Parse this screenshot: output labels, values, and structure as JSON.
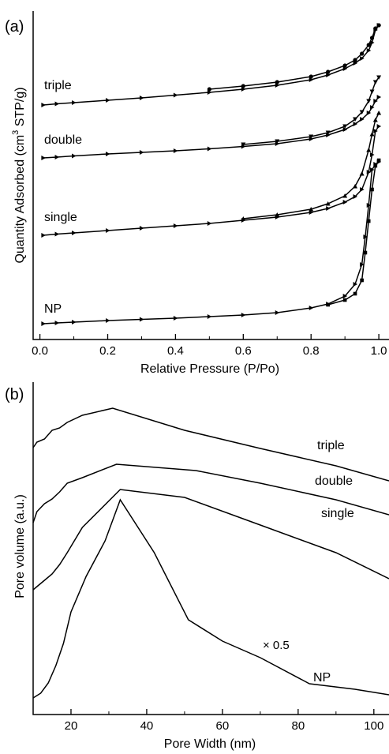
{
  "chart_data": [
    {
      "panel": "(a)",
      "type": "line",
      "xlabel": "Relative Pressure (P/Po)",
      "ylabel_main": "Quantity Adsorbed (cm",
      "ylabel_sup": "3",
      "ylabel_tail": " STP/g)",
      "xlim": [
        -0.02,
        1.03
      ],
      "x_ticks": [
        0.0,
        0.2,
        0.4,
        0.6,
        0.8,
        1.0
      ],
      "x_tick_labels": [
        "0.0",
        "0.2",
        "0.4",
        "0.6",
        "0.8",
        "1.0"
      ],
      "y_ticks_visible": false,
      "series": [
        {
          "name": "triple",
          "adsorption": [
            [
              0.01,
              133
            ],
            [
              0.05,
              131.5
            ],
            [
              0.1,
              130
            ],
            [
              0.2,
              127
            ],
            [
              0.3,
              124
            ],
            [
              0.4,
              120.5
            ],
            [
              0.5,
              117
            ],
            [
              0.6,
              113
            ],
            [
              0.7,
              108
            ],
            [
              0.8,
              101
            ],
            [
              0.85,
              95
            ],
            [
              0.9,
              87
            ],
            [
              0.93,
              80
            ],
            [
              0.95,
              74
            ],
            [
              0.97,
              64
            ],
            [
              0.98,
              54
            ],
            [
              0.99,
              38
            ],
            [
              1.0,
              32
            ]
          ],
          "desorption": [
            [
              1.0,
              32
            ],
            [
              0.99,
              36
            ],
            [
              0.98,
              48
            ],
            [
              0.97,
              57
            ],
            [
              0.95,
              68
            ],
            [
              0.93,
              76
            ],
            [
              0.9,
              83
            ],
            [
              0.85,
              91
            ],
            [
              0.8,
              97
            ],
            [
              0.7,
              104
            ],
            [
              0.6,
              109
            ],
            [
              0.5,
              113
            ]
          ]
        },
        {
          "name": "double",
          "adsorption": [
            [
              0.01,
              200
            ],
            [
              0.05,
              199
            ],
            [
              0.1,
              197.5
            ],
            [
              0.2,
              195
            ],
            [
              0.3,
              193
            ],
            [
              0.4,
              191
            ],
            [
              0.5,
              188.5
            ],
            [
              0.6,
              185.5
            ],
            [
              0.7,
              182
            ],
            [
              0.8,
              176
            ],
            [
              0.85,
              171
            ],
            [
              0.9,
              164
            ],
            [
              0.93,
              157
            ],
            [
              0.95,
              151
            ],
            [
              0.97,
              143
            ],
            [
              0.98,
              136
            ],
            [
              0.99,
              128
            ],
            [
              1.0,
              123
            ]
          ],
          "desorption": [
            [
              1.0,
              98
            ],
            [
              0.99,
              104
            ],
            [
              0.98,
              116
            ],
            [
              0.97,
              128
            ],
            [
              0.95,
              142
            ],
            [
              0.93,
              151
            ],
            [
              0.9,
              160
            ],
            [
              0.85,
              168
            ],
            [
              0.8,
              173
            ],
            [
              0.7,
              179
            ],
            [
              0.6,
              183
            ]
          ]
        },
        {
          "name": "single",
          "adsorption": [
            [
              0.01,
              298
            ],
            [
              0.05,
              296.5
            ],
            [
              0.1,
              295
            ],
            [
              0.2,
              292
            ],
            [
              0.3,
              289
            ],
            [
              0.4,
              286
            ],
            [
              0.5,
              283
            ],
            [
              0.6,
              279
            ],
            [
              0.7,
              275
            ],
            [
              0.8,
              269
            ],
            [
              0.85,
              264
            ],
            [
              0.9,
              256
            ],
            [
              0.93,
              249
            ],
            [
              0.95,
              240
            ],
            [
              0.97,
              218
            ],
            [
              0.98,
              196
            ],
            [
              0.99,
              166
            ],
            [
              1.0,
              160
            ]
          ],
          "desorption": [
            [
              1.0,
              143
            ],
            [
              0.99,
              152
            ],
            [
              0.98,
              170
            ],
            [
              0.97,
              190
            ],
            [
              0.95,
              220
            ],
            [
              0.93,
              236
            ],
            [
              0.9,
              248
            ],
            [
              0.85,
              258
            ],
            [
              0.8,
              265
            ],
            [
              0.7,
              272
            ],
            [
              0.6,
              277
            ]
          ]
        },
        {
          "name": "NP",
          "adsorption": [
            [
              0.01,
              410
            ],
            [
              0.05,
              409
            ],
            [
              0.1,
              408
            ],
            [
              0.2,
              406
            ],
            [
              0.3,
              404.5
            ],
            [
              0.4,
              403
            ],
            [
              0.5,
              401
            ],
            [
              0.6,
              399
            ],
            [
              0.7,
              396
            ],
            [
              0.8,
              390
            ],
            [
              0.85,
              385
            ],
            [
              0.9,
              375
            ],
            [
              0.93,
              360
            ],
            [
              0.95,
              335
            ],
            [
              0.96,
              300
            ],
            [
              0.97,
              260
            ],
            [
              0.98,
              215
            ],
            [
              0.99,
              208
            ],
            [
              1.0,
              205
            ]
          ],
          "desorption": [
            [
              1.0,
              203
            ],
            [
              0.99,
              210
            ],
            [
              0.98,
              240
            ],
            [
              0.97,
              280
            ],
            [
              0.96,
              320
            ],
            [
              0.95,
              355
            ],
            [
              0.93,
              372
            ],
            [
              0.9,
              380
            ],
            [
              0.85,
              386
            ]
          ]
        }
      ]
    },
    {
      "panel": "(b)",
      "type": "line",
      "xlabel": "Pore Width (nm)",
      "ylabel": "Pore volume (a.u.)",
      "xlim": [
        10,
        104
      ],
      "x_ticks": [
        20,
        40,
        60,
        80,
        100
      ],
      "x_tick_labels": [
        "20",
        "40",
        "60",
        "80",
        "100"
      ],
      "y_ticks_visible": false,
      "annotation": "× 0.5",
      "series": [
        {
          "name": "triple",
          "points": [
            [
              10,
              567
            ],
            [
              11,
              560
            ],
            [
              13,
              556
            ],
            [
              15,
              545
            ],
            [
              17,
              542
            ],
            [
              19,
              535
            ],
            [
              23,
              526
            ],
            [
              31,
              517
            ],
            [
              50,
              545
            ],
            [
              70,
              568
            ],
            [
              90,
              590
            ],
            [
              104,
              609
            ]
          ]
        },
        {
          "name": "double",
          "points": [
            [
              10,
              662
            ],
            [
              11,
              648
            ],
            [
              13,
              638
            ],
            [
              15,
              632
            ],
            [
              17,
              623
            ],
            [
              19,
              612
            ],
            [
              23,
              605
            ],
            [
              32,
              588
            ],
            [
              53,
              596
            ],
            [
              70,
              612
            ],
            [
              90,
              633
            ],
            [
              104,
              652
            ]
          ]
        },
        {
          "name": "single",
          "points": [
            [
              10,
              747
            ],
            [
              11,
              743
            ],
            [
              13,
              735
            ],
            [
              15,
              727
            ],
            [
              17,
              715
            ],
            [
              19,
              700
            ],
            [
              23,
              668
            ],
            [
              33,
              620
            ],
            [
              50,
              630
            ],
            [
              70,
              665
            ],
            [
              90,
              700
            ],
            [
              104,
              733
            ]
          ]
        },
        {
          "name": "NP",
          "points": [
            [
              10,
              884
            ],
            [
              12,
              878
            ],
            [
              14,
              865
            ],
            [
              16,
              843
            ],
            [
              18,
              815
            ],
            [
              20,
              775
            ],
            [
              24,
              730
            ],
            [
              29,
              685
            ],
            [
              33,
              633
            ],
            [
              42,
              700
            ],
            [
              51,
              785
            ],
            [
              60,
              812
            ],
            [
              70,
              833
            ],
            [
              83,
              866
            ],
            [
              95,
              873
            ],
            [
              104,
              880
            ]
          ]
        }
      ]
    }
  ]
}
